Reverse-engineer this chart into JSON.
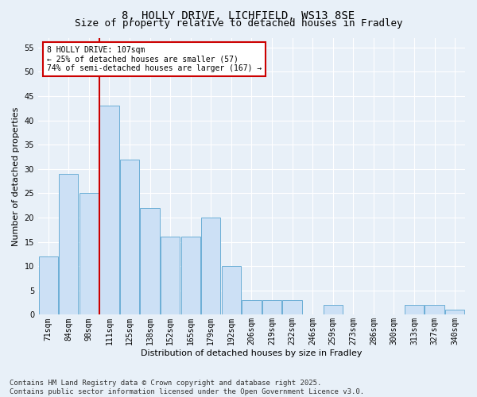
{
  "title_line1": "8, HOLLY DRIVE, LICHFIELD, WS13 8SE",
  "title_line2": "Size of property relative to detached houses in Fradley",
  "xlabel": "Distribution of detached houses by size in Fradley",
  "ylabel": "Number of detached properties",
  "categories": [
    "71sqm",
    "84sqm",
    "98sqm",
    "111sqm",
    "125sqm",
    "138sqm",
    "152sqm",
    "165sqm",
    "179sqm",
    "192sqm",
    "206sqm",
    "219sqm",
    "232sqm",
    "246sqm",
    "259sqm",
    "273sqm",
    "286sqm",
    "300sqm",
    "313sqm",
    "327sqm",
    "340sqm"
  ],
  "values": [
    12,
    29,
    25,
    43,
    32,
    22,
    16,
    16,
    20,
    10,
    3,
    3,
    3,
    0,
    2,
    0,
    0,
    0,
    2,
    2,
    1
  ],
  "bar_color": "#cce0f5",
  "bar_edge_color": "#6baed6",
  "vline_color": "#cc0000",
  "annotation_text": "8 HOLLY DRIVE: 107sqm\n← 25% of detached houses are smaller (57)\n74% of semi-detached houses are larger (167) →",
  "annotation_box_color": "#cc0000",
  "ylim_max": 57,
  "yticks": [
    0,
    5,
    10,
    15,
    20,
    25,
    30,
    35,
    40,
    45,
    50,
    55
  ],
  "footer_line1": "Contains HM Land Registry data © Crown copyright and database right 2025.",
  "footer_line2": "Contains public sector information licensed under the Open Government Licence v3.0.",
  "bg_color": "#e8f0f8",
  "plot_bg_color": "#e8f0f8",
  "grid_color": "#ffffff",
  "title_fontsize": 10,
  "subtitle_fontsize": 9,
  "axis_label_fontsize": 8,
  "tick_fontsize": 7,
  "annotation_fontsize": 7,
  "footer_fontsize": 6.5
}
